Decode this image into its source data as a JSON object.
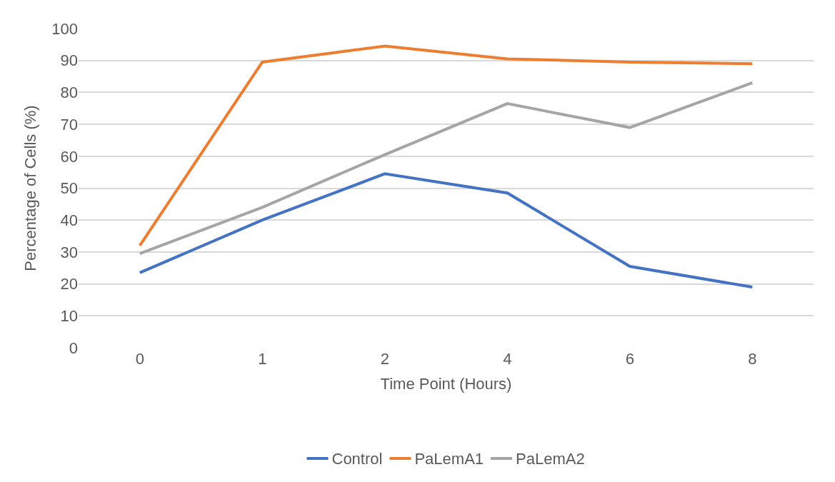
{
  "chart_data": {
    "type": "line",
    "xlabel": "Time Point (Hours)",
    "ylabel": "Percentage of Cells (%)",
    "categories": [
      "0",
      "1",
      "2",
      "4",
      "6",
      "8"
    ],
    "series": [
      {
        "name": "Control",
        "color": "#4472c4",
        "values": [
          23.5,
          40,
          54.5,
          48.5,
          25.5,
          19
        ]
      },
      {
        "name": "PaLemA1",
        "color": "#ed7d31",
        "values": [
          32,
          89.5,
          94.5,
          90.5,
          89.5,
          89
        ]
      },
      {
        "name": "PaLemA2",
        "color": "#a5a5a5",
        "values": [
          29.5,
          44,
          60.5,
          76.5,
          69,
          83
        ]
      }
    ],
    "ylim": [
      0,
      100
    ],
    "yticks": [
      0,
      10,
      20,
      30,
      40,
      50,
      60,
      70,
      80,
      90,
      100
    ],
    "grid": "y",
    "legend": "bottom",
    "marker": "none",
    "line_style": "solid"
  }
}
